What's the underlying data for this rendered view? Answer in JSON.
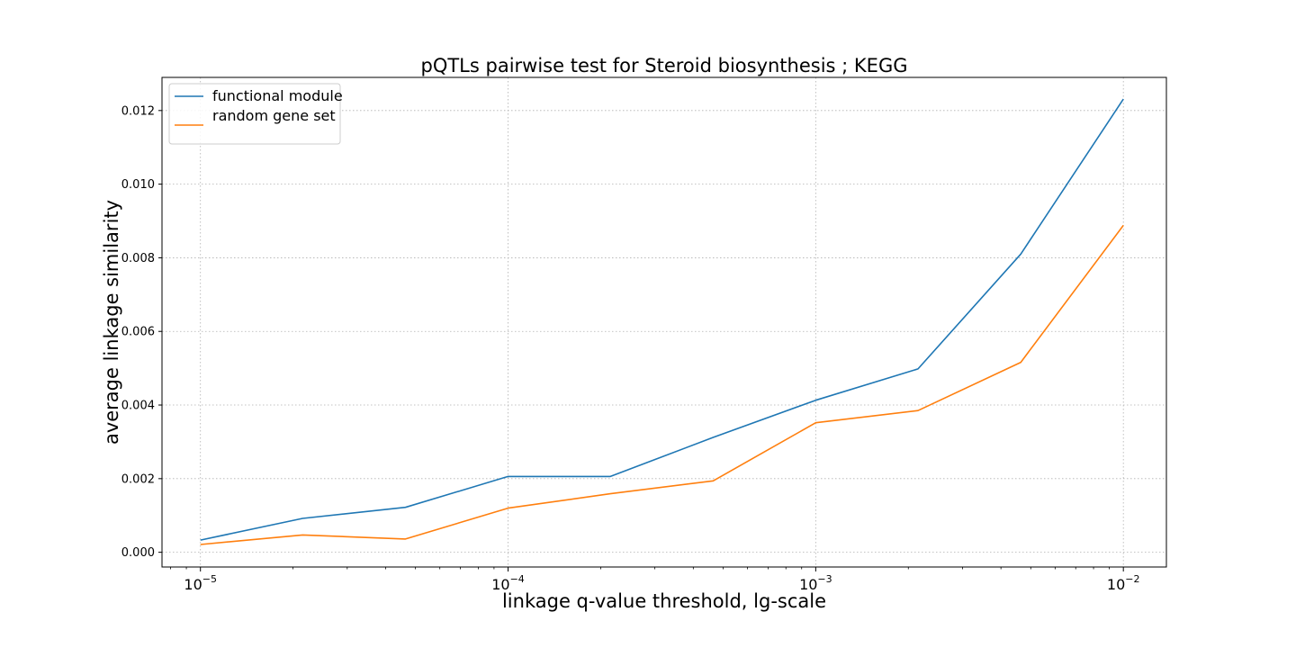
{
  "chart_data": {
    "type": "line",
    "title": "pQTLs pairwise test for Steroid biosynthesis ; KEGG",
    "xlabel": "linkage q-value threshold, lg-scale",
    "ylabel": "average linkage similarity",
    "x_scale": "log",
    "xlim": [
      7.5e-06,
      0.0138
    ],
    "ylim": [
      -0.0004,
      0.0129
    ],
    "grid": true,
    "legend_position": "top-left",
    "x": [
      1e-05,
      2.15e-05,
      4.64e-05,
      0.0001,
      0.000215,
      0.000464,
      0.001,
      0.00215,
      0.00464,
      0.01
    ],
    "x_ticks": [
      {
        "value": 1e-05,
        "base": "10",
        "exp": "−5"
      },
      {
        "value": 0.0001,
        "base": "10",
        "exp": "−4"
      },
      {
        "value": 0.001,
        "base": "10",
        "exp": "−3"
      },
      {
        "value": 0.01,
        "base": "10",
        "exp": "−2"
      }
    ],
    "y_ticks": [
      {
        "value": 0.0,
        "label": "0.000"
      },
      {
        "value": 0.002,
        "label": "0.002"
      },
      {
        "value": 0.004,
        "label": "0.004"
      },
      {
        "value": 0.006,
        "label": "0.006"
      },
      {
        "value": 0.008,
        "label": "0.008"
      },
      {
        "value": 0.01,
        "label": "0.010"
      },
      {
        "value": 0.012,
        "label": "0.012"
      }
    ],
    "series": [
      {
        "name": "functional module",
        "color": "#1f77b4",
        "values": [
          0.00033,
          0.00092,
          0.00122,
          0.00206,
          0.00206,
          0.00312,
          0.00413,
          0.00498,
          0.0081,
          0.01231
        ]
      },
      {
        "name": "random gene set",
        "color": "#ff7f0e",
        "values": [
          0.00021,
          0.00047,
          0.00036,
          0.0012,
          0.00159,
          0.00194,
          0.00352,
          0.00385,
          0.00516,
          0.00888
        ]
      }
    ]
  }
}
